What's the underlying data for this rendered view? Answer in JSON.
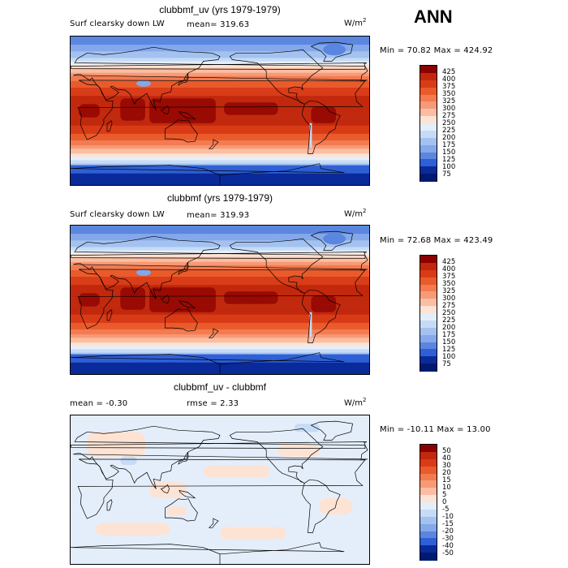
{
  "season": "ANN",
  "panels": [
    {
      "title": "clubbmf_uv (yrs 1979-1979)",
      "variable_label": "Surf clearsky down LW",
      "mean_text": "mean=  319.63",
      "units_base": "W/m",
      "units_sup": "2",
      "minmax_text": "Min =  70.82 Max = 424.92",
      "kind": "field",
      "levels": [
        "425",
        "400",
        "375",
        "350",
        "325",
        "300",
        "275",
        "250",
        "225",
        "200",
        "175",
        "150",
        "125",
        "100",
        "75"
      ],
      "colors": [
        "#8b0000",
        "#c1280d",
        "#d93b17",
        "#ea5b2b",
        "#f47a50",
        "#f89a76",
        "#fbbea3",
        "#fde3d4",
        "#e4eefb",
        "#c6dbf7",
        "#a3c2f0",
        "#84a8ea",
        "#5a86e0",
        "#2e5fd6",
        "#0a2a9a",
        "#001a70"
      ]
    },
    {
      "title": "clubbmf (yrs 1979-1979)",
      "variable_label": "Surf clearsky down LW",
      "mean_text": "mean=  319.93",
      "units_base": "W/m",
      "units_sup": "2",
      "minmax_text": "Min =  72.68 Max = 423.49",
      "kind": "field",
      "levels": [
        "425",
        "400",
        "375",
        "350",
        "325",
        "300",
        "275",
        "250",
        "225",
        "200",
        "175",
        "150",
        "125",
        "100",
        "75"
      ],
      "colors": [
        "#8b0000",
        "#c1280d",
        "#d93b17",
        "#ea5b2b",
        "#f47a50",
        "#f89a76",
        "#fbbea3",
        "#fde3d4",
        "#e4eefb",
        "#c6dbf7",
        "#a3c2f0",
        "#84a8ea",
        "#5a86e0",
        "#2e5fd6",
        "#0a2a9a",
        "#001a70"
      ]
    },
    {
      "title": "clubbmf_uv - clubbmf",
      "mean_text": "mean =   -0.30",
      "rmse_text": "rmse =    2.33",
      "units_base": "W/m",
      "units_sup": "2",
      "minmax_text": "Min = -10.11 Max =   13.00",
      "kind": "diff",
      "levels": [
        "50",
        "40",
        "30",
        "20",
        "15",
        "10",
        "5",
        "0",
        "-5",
        "-10",
        "-15",
        "-20",
        "-30",
        "-40",
        "-50"
      ],
      "colors": [
        "#8b0000",
        "#c1280d",
        "#d93b17",
        "#ea5b2b",
        "#f47a50",
        "#f89a76",
        "#fbbea3",
        "#fde3d4",
        "#e4eefb",
        "#c6dbf7",
        "#a3c2f0",
        "#84a8ea",
        "#5a86e0",
        "#2e5fd6",
        "#0a2a9a",
        "#001a70"
      ]
    }
  ]
}
